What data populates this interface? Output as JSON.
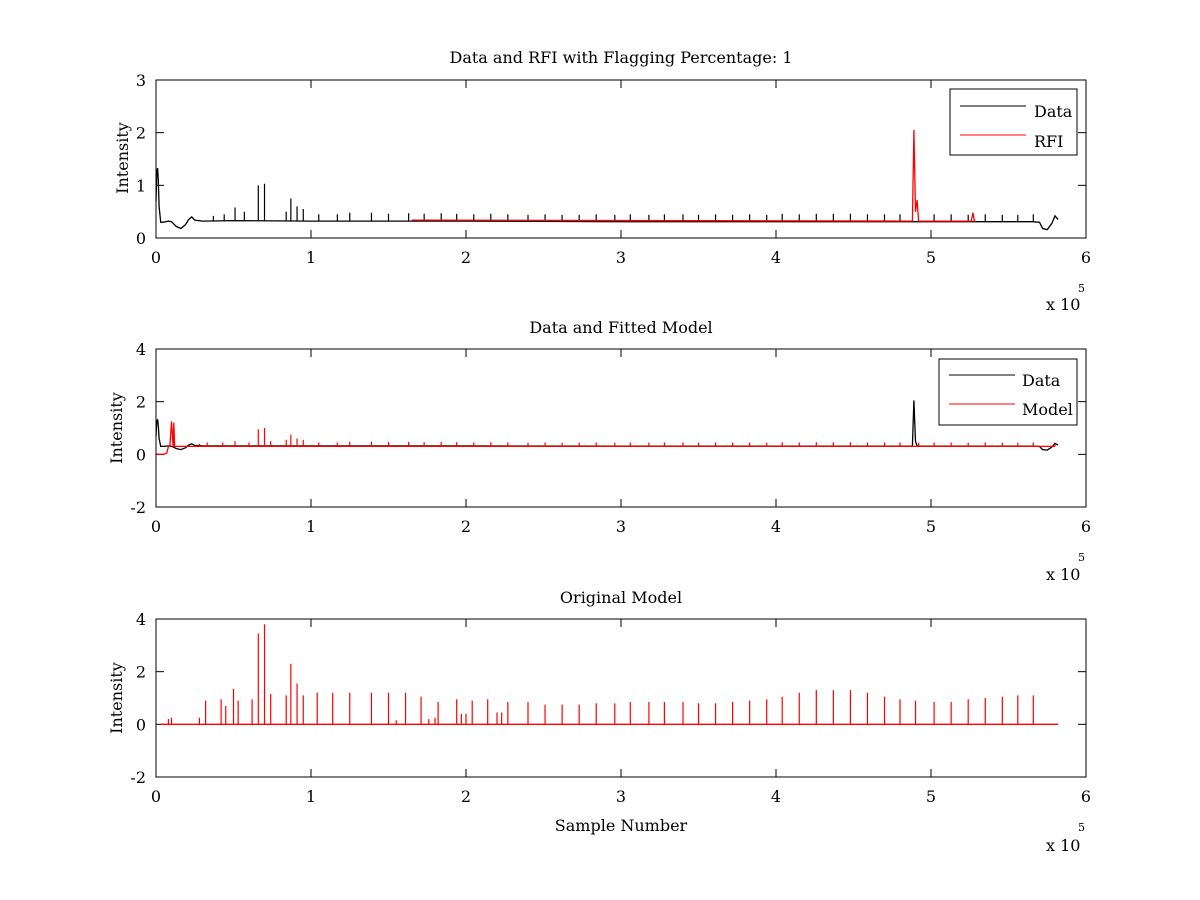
{
  "figure": {
    "x_exponent_base": "x 10",
    "x_exponent_power": "5"
  },
  "chart_data": [
    {
      "type": "line",
      "title": "Data and RFI with Flagging Percentage: 1",
      "xlabel": "",
      "ylabel": "Intensity",
      "xlim": [
        0,
        6
      ],
      "ylim": [
        0,
        3
      ],
      "xticks": [
        "0",
        "1",
        "2",
        "3",
        "4",
        "5",
        "6"
      ],
      "yticks": [
        "0",
        "1",
        "2",
        "3"
      ],
      "grid": false,
      "legend_position": "top-right",
      "series": [
        {
          "name": "Data",
          "color": "#000000",
          "baseline": 0.32,
          "x": [
            0.0,
            0.005,
            0.01,
            0.015,
            0.02,
            0.03,
            0.05,
            0.08,
            0.1,
            0.13,
            0.16,
            0.19,
            0.21,
            0.23,
            0.25,
            0.3,
            0.5,
            1.0,
            2.0,
            3.0,
            4.0,
            5.0,
            5.5,
            5.65,
            5.7,
            5.72,
            5.75,
            5.78,
            5.8,
            5.82
          ],
          "y": [
            0.7,
            1.25,
            1.33,
            1.1,
            0.6,
            0.3,
            0.3,
            0.32,
            0.31,
            0.22,
            0.18,
            0.25,
            0.35,
            0.4,
            0.34,
            0.32,
            0.33,
            0.32,
            0.32,
            0.31,
            0.31,
            0.31,
            0.31,
            0.31,
            0.3,
            0.18,
            0.16,
            0.28,
            0.42,
            0.35
          ],
          "spikes": [
            {
              "x": 0.37,
              "y": 0.42
            },
            {
              "x": 0.44,
              "y": 0.45
            },
            {
              "x": 0.51,
              "y": 0.58
            },
            {
              "x": 0.57,
              "y": 0.5
            },
            {
              "x": 0.66,
              "y": 1.0
            },
            {
              "x": 0.7,
              "y": 1.03
            },
            {
              "x": 0.84,
              "y": 0.5
            },
            {
              "x": 0.87,
              "y": 0.75
            },
            {
              "x": 0.91,
              "y": 0.6
            },
            {
              "x": 0.95,
              "y": 0.55
            },
            {
              "x": 1.05,
              "y": 0.45
            },
            {
              "x": 1.17,
              "y": 0.45
            },
            {
              "x": 1.25,
              "y": 0.48
            },
            {
              "x": 1.39,
              "y": 0.48
            },
            {
              "x": 1.5,
              "y": 0.46
            },
            {
              "x": 1.63,
              "y": 0.47
            },
            {
              "x": 1.73,
              "y": 0.46
            },
            {
              "x": 1.84,
              "y": 0.47
            },
            {
              "x": 1.94,
              "y": 0.46
            },
            {
              "x": 2.05,
              "y": 0.45
            },
            {
              "x": 2.16,
              "y": 0.46
            },
            {
              "x": 2.27,
              "y": 0.45
            },
            {
              "x": 2.4,
              "y": 0.44
            },
            {
              "x": 2.51,
              "y": 0.45
            },
            {
              "x": 2.62,
              "y": 0.44
            },
            {
              "x": 2.73,
              "y": 0.44
            },
            {
              "x": 2.84,
              "y": 0.45
            },
            {
              "x": 2.96,
              "y": 0.44
            },
            {
              "x": 3.06,
              "y": 0.45
            },
            {
              "x": 3.18,
              "y": 0.44
            },
            {
              "x": 3.28,
              "y": 0.45
            },
            {
              "x": 3.4,
              "y": 0.45
            },
            {
              "x": 3.5,
              "y": 0.44
            },
            {
              "x": 3.61,
              "y": 0.45
            },
            {
              "x": 3.72,
              "y": 0.44
            },
            {
              "x": 3.83,
              "y": 0.45
            },
            {
              "x": 3.94,
              "y": 0.44
            },
            {
              "x": 4.04,
              "y": 0.46
            },
            {
              "x": 4.15,
              "y": 0.45
            },
            {
              "x": 4.26,
              "y": 0.46
            },
            {
              "x": 4.37,
              "y": 0.46
            },
            {
              "x": 4.48,
              "y": 0.46
            },
            {
              "x": 4.59,
              "y": 0.45
            },
            {
              "x": 4.7,
              "y": 0.45
            },
            {
              "x": 4.8,
              "y": 0.45
            },
            {
              "x": 5.02,
              "y": 0.45
            },
            {
              "x": 5.13,
              "y": 0.45
            },
            {
              "x": 5.24,
              "y": 0.44
            },
            {
              "x": 5.35,
              "y": 0.45
            },
            {
              "x": 5.46,
              "y": 0.44
            },
            {
              "x": 5.56,
              "y": 0.44
            },
            {
              "x": 5.66,
              "y": 0.45
            }
          ]
        },
        {
          "name": "RFI",
          "color": "#ff0000",
          "x": [
            1.65,
            1.7,
            4.87,
            4.88,
            4.89,
            4.9,
            4.91,
            4.92,
            4.93,
            5.26,
            5.27,
            5.28,
            5.29
          ],
          "y": [
            0.34,
            0.34,
            0.32,
            0.32,
            2.05,
            0.5,
            0.72,
            0.32,
            0.32,
            0.32,
            0.48,
            0.32,
            0.32
          ]
        }
      ]
    },
    {
      "type": "line",
      "title": "Data and Fitted Model",
      "xlabel": "",
      "ylabel": "Intensity",
      "xlim": [
        0,
        6
      ],
      "ylim": [
        -2,
        4
      ],
      "xticks": [
        "0",
        "1",
        "2",
        "3",
        "4",
        "5",
        "6"
      ],
      "yticks": [
        "-2",
        "0",
        "2",
        "4"
      ],
      "grid": false,
      "legend_position": "top-right",
      "series": [
        {
          "name": "Data",
          "color": "#000000",
          "x": [
            0.0,
            0.005,
            0.01,
            0.015,
            0.02,
            0.03,
            0.05,
            0.08,
            0.1,
            0.13,
            0.16,
            0.19,
            0.21,
            0.23,
            0.25,
            0.3,
            1.0,
            2.0,
            3.0,
            4.0,
            4.88,
            4.89,
            4.9,
            4.91,
            5.0,
            5.65,
            5.7,
            5.72,
            5.75,
            5.78,
            5.8,
            5.82
          ],
          "y": [
            0.7,
            1.25,
            1.33,
            1.1,
            0.6,
            0.3,
            0.3,
            0.32,
            0.31,
            0.22,
            0.18,
            0.25,
            0.35,
            0.4,
            0.34,
            0.32,
            0.32,
            0.32,
            0.31,
            0.31,
            0.31,
            2.05,
            0.5,
            0.31,
            0.31,
            0.31,
            0.3,
            0.18,
            0.16,
            0.28,
            0.42,
            0.35
          ]
        },
        {
          "name": "Model",
          "color": "#ff0000",
          "baseline": 0.3,
          "x": [
            0.0,
            0.05,
            0.07,
            0.08,
            0.09,
            0.1,
            0.11,
            0.115,
            0.12,
            0.14,
            0.2,
            1.0,
            3.0,
            5.0,
            5.8
          ],
          "y": [
            0.0,
            0.0,
            0.05,
            0.3,
            0.3,
            1.25,
            0.3,
            1.2,
            0.3,
            0.3,
            0.3,
            0.3,
            0.3,
            0.3,
            0.3
          ],
          "spikes": [
            {
              "x": 0.28,
              "y": 0.4
            },
            {
              "x": 0.33,
              "y": 0.45
            },
            {
              "x": 0.43,
              "y": 0.45
            },
            {
              "x": 0.51,
              "y": 0.5
            },
            {
              "x": 0.6,
              "y": 0.45
            },
            {
              "x": 0.66,
              "y": 0.95
            },
            {
              "x": 0.7,
              "y": 1.0
            },
            {
              "x": 0.74,
              "y": 0.5
            },
            {
              "x": 0.84,
              "y": 0.55
            },
            {
              "x": 0.87,
              "y": 0.75
            },
            {
              "x": 0.91,
              "y": 0.6
            },
            {
              "x": 0.95,
              "y": 0.55
            },
            {
              "x": 1.05,
              "y": 0.45
            },
            {
              "x": 1.17,
              "y": 0.45
            },
            {
              "x": 1.25,
              "y": 0.48
            },
            {
              "x": 1.39,
              "y": 0.48
            },
            {
              "x": 1.5,
              "y": 0.46
            },
            {
              "x": 1.63,
              "y": 0.47
            },
            {
              "x": 1.73,
              "y": 0.46
            },
            {
              "x": 1.84,
              "y": 0.47
            },
            {
              "x": 1.94,
              "y": 0.46
            },
            {
              "x": 2.05,
              "y": 0.45
            },
            {
              "x": 2.16,
              "y": 0.46
            },
            {
              "x": 2.27,
              "y": 0.45
            },
            {
              "x": 2.4,
              "y": 0.44
            },
            {
              "x": 2.51,
              "y": 0.45
            },
            {
              "x": 2.62,
              "y": 0.44
            },
            {
              "x": 2.73,
              "y": 0.44
            },
            {
              "x": 2.84,
              "y": 0.45
            },
            {
              "x": 2.96,
              "y": 0.44
            },
            {
              "x": 3.06,
              "y": 0.45
            },
            {
              "x": 3.18,
              "y": 0.44
            },
            {
              "x": 3.28,
              "y": 0.45
            },
            {
              "x": 3.4,
              "y": 0.45
            },
            {
              "x": 3.5,
              "y": 0.44
            },
            {
              "x": 3.61,
              "y": 0.45
            },
            {
              "x": 3.72,
              "y": 0.44
            },
            {
              "x": 3.83,
              "y": 0.45
            },
            {
              "x": 3.94,
              "y": 0.44
            },
            {
              "x": 4.04,
              "y": 0.46
            },
            {
              "x": 4.15,
              "y": 0.45
            },
            {
              "x": 4.26,
              "y": 0.46
            },
            {
              "x": 4.37,
              "y": 0.46
            },
            {
              "x": 4.48,
              "y": 0.46
            },
            {
              "x": 4.59,
              "y": 0.45
            },
            {
              "x": 4.7,
              "y": 0.45
            },
            {
              "x": 4.8,
              "y": 0.45
            },
            {
              "x": 4.92,
              "y": 0.44
            },
            {
              "x": 5.02,
              "y": 0.45
            },
            {
              "x": 5.13,
              "y": 0.45
            },
            {
              "x": 5.24,
              "y": 0.44
            },
            {
              "x": 5.35,
              "y": 0.45
            },
            {
              "x": 5.46,
              "y": 0.44
            },
            {
              "x": 5.56,
              "y": 0.44
            },
            {
              "x": 5.66,
              "y": 0.45
            },
            {
              "x": 5.8,
              "y": 0.4
            }
          ]
        }
      ]
    },
    {
      "type": "line",
      "title": "Original Model",
      "xlabel": "Sample Number",
      "ylabel": "Intensity",
      "xlim": [
        0,
        6
      ],
      "ylim": [
        -2,
        4
      ],
      "xticks": [
        "0",
        "1",
        "2",
        "3",
        "4",
        "5",
        "6"
      ],
      "yticks": [
        "-2",
        "0",
        "2",
        "4"
      ],
      "grid": false,
      "legend_position": "none",
      "series": [
        {
          "name": "",
          "color": "#ff0000",
          "baseline": 0.0,
          "x": [
            0.03,
            5.82
          ],
          "y": [
            0.0,
            0.0
          ],
          "spikes": [
            {
              "x": 0.08,
              "y": 0.2
            },
            {
              "x": 0.1,
              "y": 0.25
            },
            {
              "x": 0.28,
              "y": 0.25
            },
            {
              "x": 0.32,
              "y": 0.9
            },
            {
              "x": 0.42,
              "y": 0.95
            },
            {
              "x": 0.45,
              "y": 0.7
            },
            {
              "x": 0.5,
              "y": 1.35
            },
            {
              "x": 0.53,
              "y": 0.9
            },
            {
              "x": 0.62,
              "y": 0.95
            },
            {
              "x": 0.66,
              "y": 3.45
            },
            {
              "x": 0.7,
              "y": 3.8
            },
            {
              "x": 0.74,
              "y": 1.15
            },
            {
              "x": 0.84,
              "y": 1.1
            },
            {
              "x": 0.87,
              "y": 2.3
            },
            {
              "x": 0.91,
              "y": 1.55
            },
            {
              "x": 0.95,
              "y": 1.1
            },
            {
              "x": 1.04,
              "y": 1.2
            },
            {
              "x": 1.14,
              "y": 1.2
            },
            {
              "x": 1.25,
              "y": 1.2
            },
            {
              "x": 1.39,
              "y": 1.2
            },
            {
              "x": 1.5,
              "y": 1.2
            },
            {
              "x": 1.55,
              "y": 0.15
            },
            {
              "x": 1.61,
              "y": 1.2
            },
            {
              "x": 1.71,
              "y": 1.05
            },
            {
              "x": 1.76,
              "y": 0.2
            },
            {
              "x": 1.8,
              "y": 0.25
            },
            {
              "x": 1.82,
              "y": 0.85
            },
            {
              "x": 1.94,
              "y": 0.95
            },
            {
              "x": 1.97,
              "y": 0.4
            },
            {
              "x": 2.0,
              "y": 0.4
            },
            {
              "x": 2.04,
              "y": 0.9
            },
            {
              "x": 2.14,
              "y": 0.95
            },
            {
              "x": 2.2,
              "y": 0.45
            },
            {
              "x": 2.23,
              "y": 0.45
            },
            {
              "x": 2.27,
              "y": 0.85
            },
            {
              "x": 2.4,
              "y": 0.85
            },
            {
              "x": 2.51,
              "y": 0.75
            },
            {
              "x": 2.62,
              "y": 0.75
            },
            {
              "x": 2.73,
              "y": 0.75
            },
            {
              "x": 2.84,
              "y": 0.8
            },
            {
              "x": 2.96,
              "y": 0.8
            },
            {
              "x": 3.06,
              "y": 0.85
            },
            {
              "x": 3.18,
              "y": 0.85
            },
            {
              "x": 3.28,
              "y": 0.85
            },
            {
              "x": 3.4,
              "y": 0.85
            },
            {
              "x": 3.5,
              "y": 0.8
            },
            {
              "x": 3.61,
              "y": 0.8
            },
            {
              "x": 3.72,
              "y": 0.85
            },
            {
              "x": 3.83,
              "y": 0.9
            },
            {
              "x": 3.94,
              "y": 0.95
            },
            {
              "x": 4.04,
              "y": 1.05
            },
            {
              "x": 4.15,
              "y": 1.2
            },
            {
              "x": 4.26,
              "y": 1.3
            },
            {
              "x": 4.37,
              "y": 1.3
            },
            {
              "x": 4.48,
              "y": 1.3
            },
            {
              "x": 4.59,
              "y": 1.2
            },
            {
              "x": 4.7,
              "y": 1.05
            },
            {
              "x": 4.8,
              "y": 0.95
            },
            {
              "x": 4.9,
              "y": 0.9
            },
            {
              "x": 5.02,
              "y": 0.85
            },
            {
              "x": 5.13,
              "y": 0.85
            },
            {
              "x": 5.24,
              "y": 0.95
            },
            {
              "x": 5.35,
              "y": 1.0
            },
            {
              "x": 5.46,
              "y": 1.05
            },
            {
              "x": 5.56,
              "y": 1.1
            },
            {
              "x": 5.66,
              "y": 1.1
            }
          ]
        }
      ]
    }
  ]
}
